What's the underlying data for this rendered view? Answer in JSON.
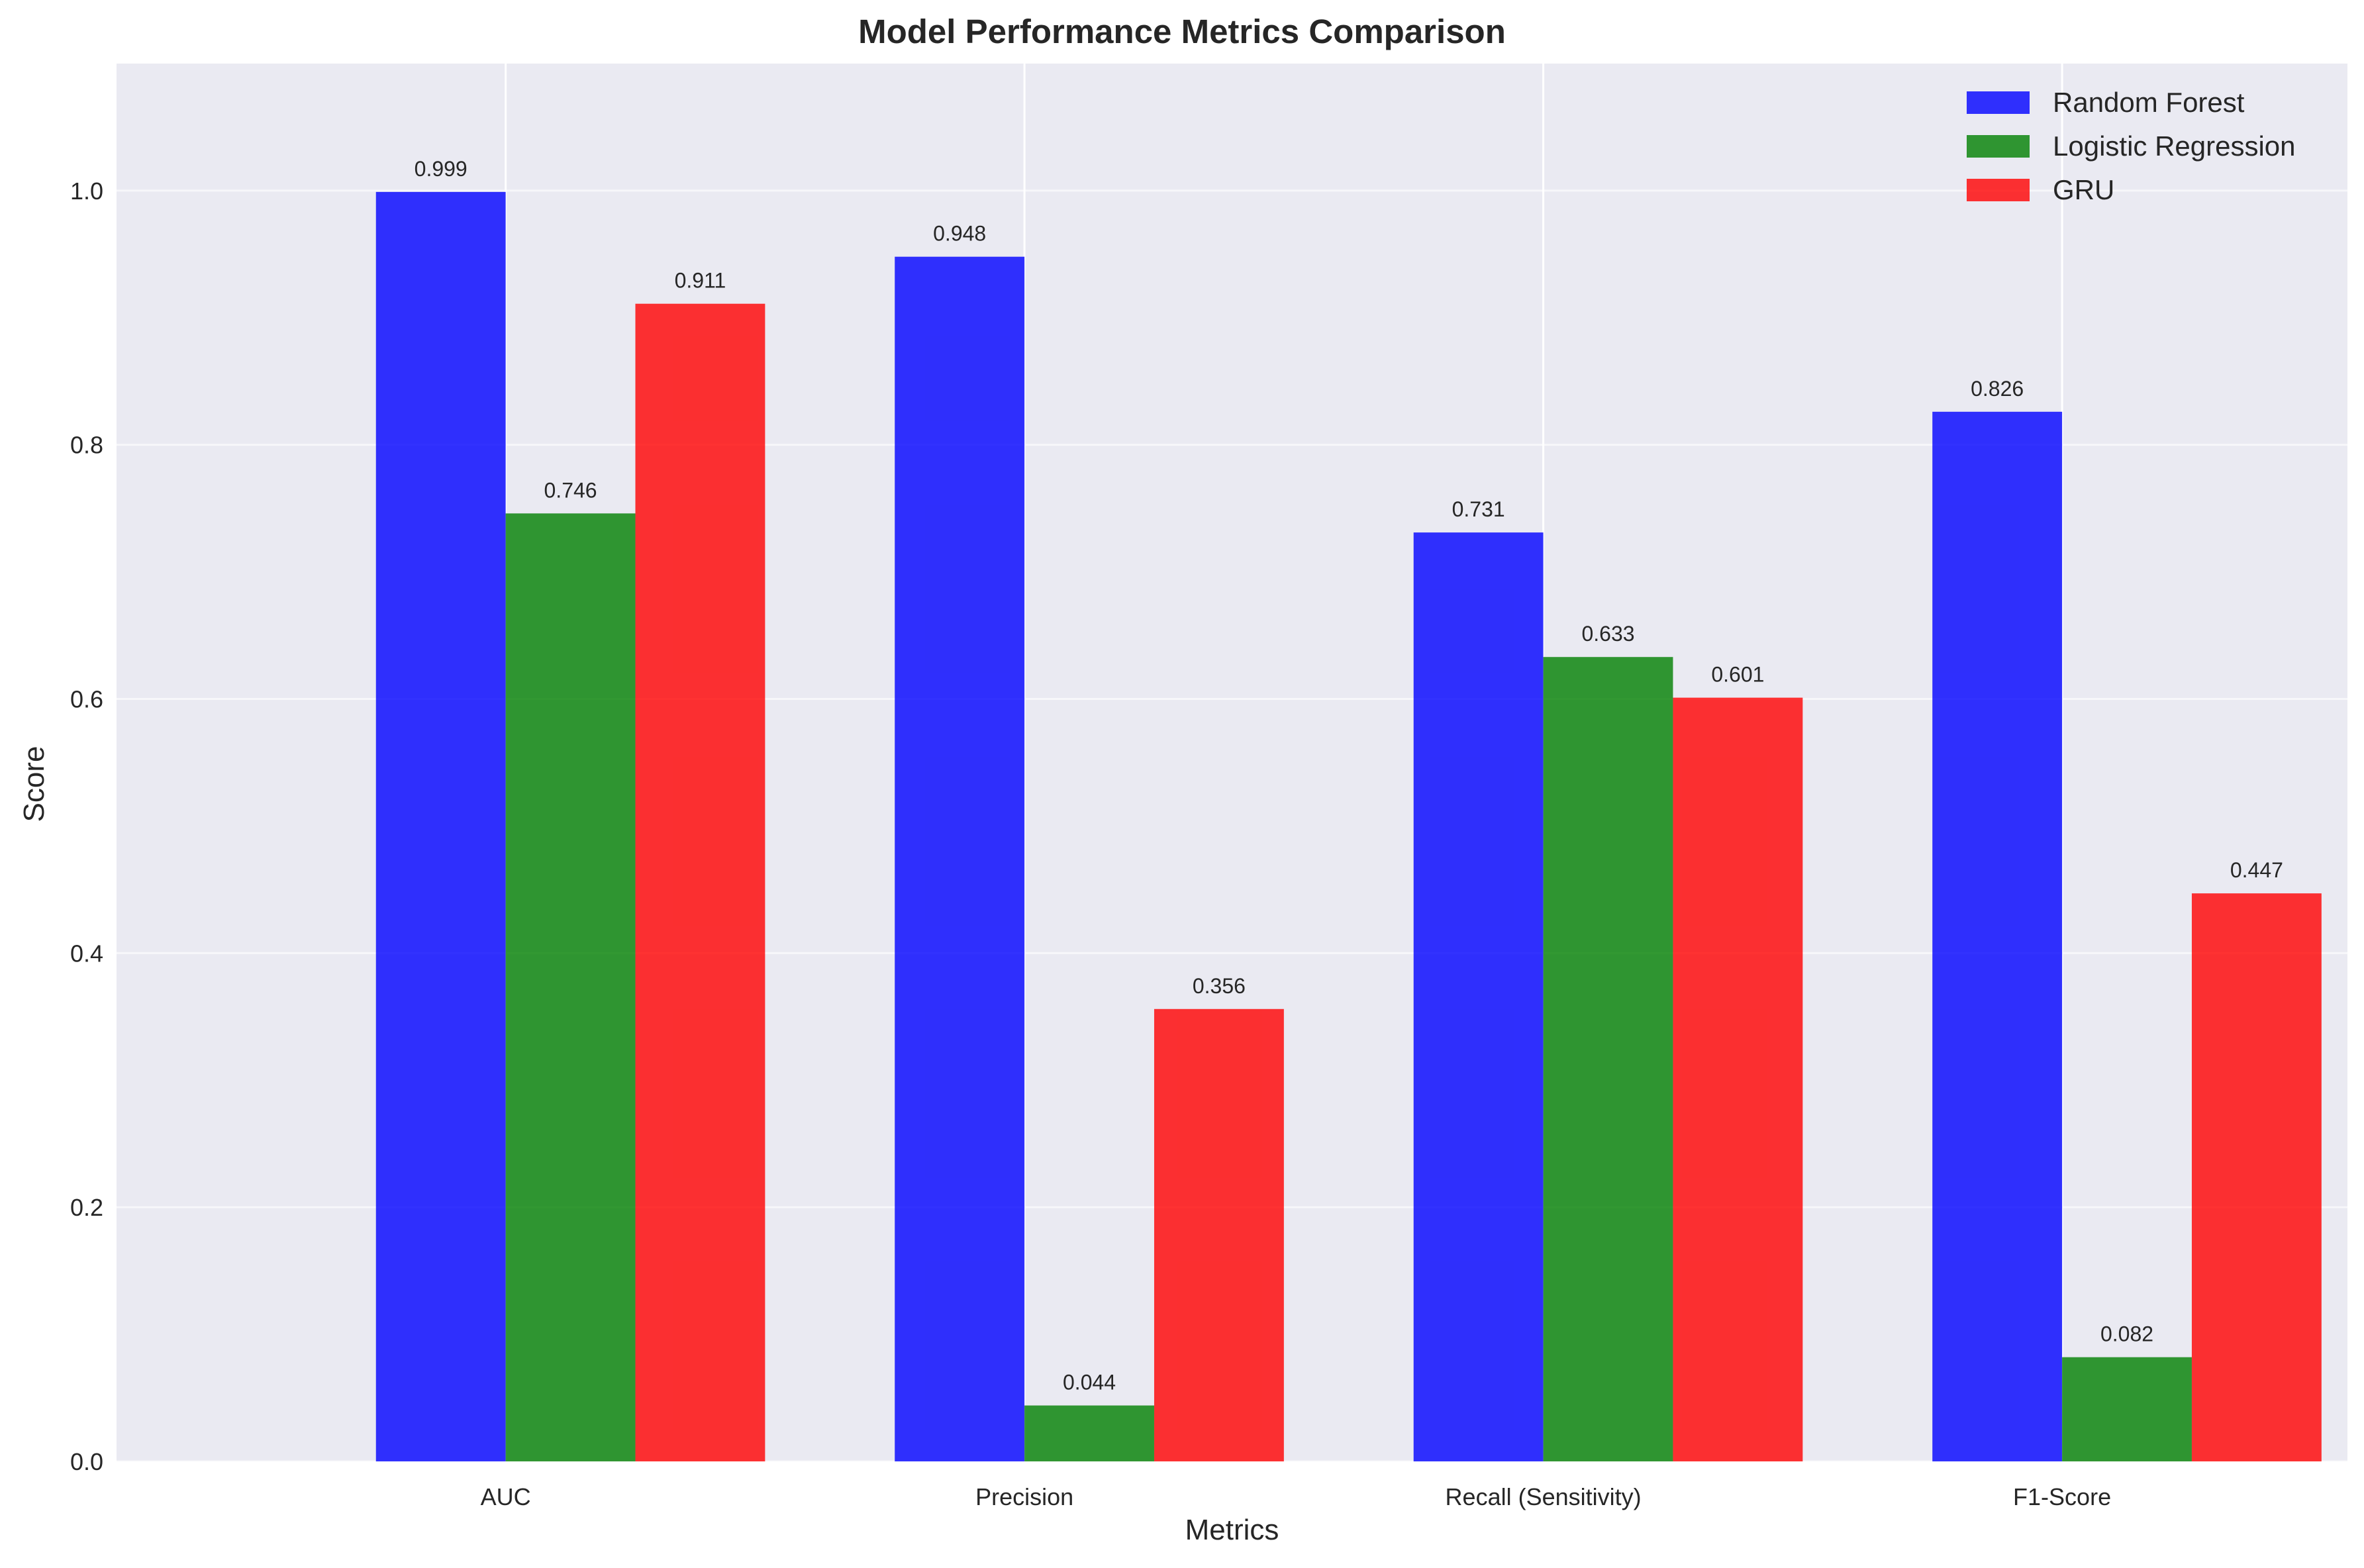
{
  "chart_data": {
    "type": "bar",
    "title": "Model Performance Metrics Comparison",
    "xlabel": "Metrics",
    "ylabel": "Score",
    "categories": [
      "AUC",
      "Precision",
      "Recall (Sensitivity)",
      "F1-Score"
    ],
    "series": [
      {
        "name": "Random Forest",
        "color": "#0000ff",
        "values": [
          0.999,
          0.948,
          0.731,
          0.826
        ],
        "labels": [
          "0.999",
          "0.948",
          "0.731",
          "0.826"
        ]
      },
      {
        "name": "Logistic Regression",
        "color": "#008000",
        "values": [
          0.746,
          0.044,
          0.633,
          0.082
        ],
        "labels": [
          "0.746",
          "0.044",
          "0.633",
          "0.082"
        ]
      },
      {
        "name": "GRU",
        "color": "#ff0000",
        "values": [
          0.911,
          0.356,
          0.601,
          0.447
        ],
        "labels": [
          "0.911",
          "0.356",
          "0.601",
          "0.447"
        ]
      }
    ],
    "ylim": [
      0,
      1.1
    ],
    "yticks": [
      "0.0",
      "0.2",
      "0.4",
      "0.6",
      "0.8",
      "1.0"
    ],
    "grid": true,
    "legend_position": "top-right",
    "background_color": "#eaeaf2",
    "gridline_color": "#ffffff",
    "bar_opacity": 0.8
  }
}
